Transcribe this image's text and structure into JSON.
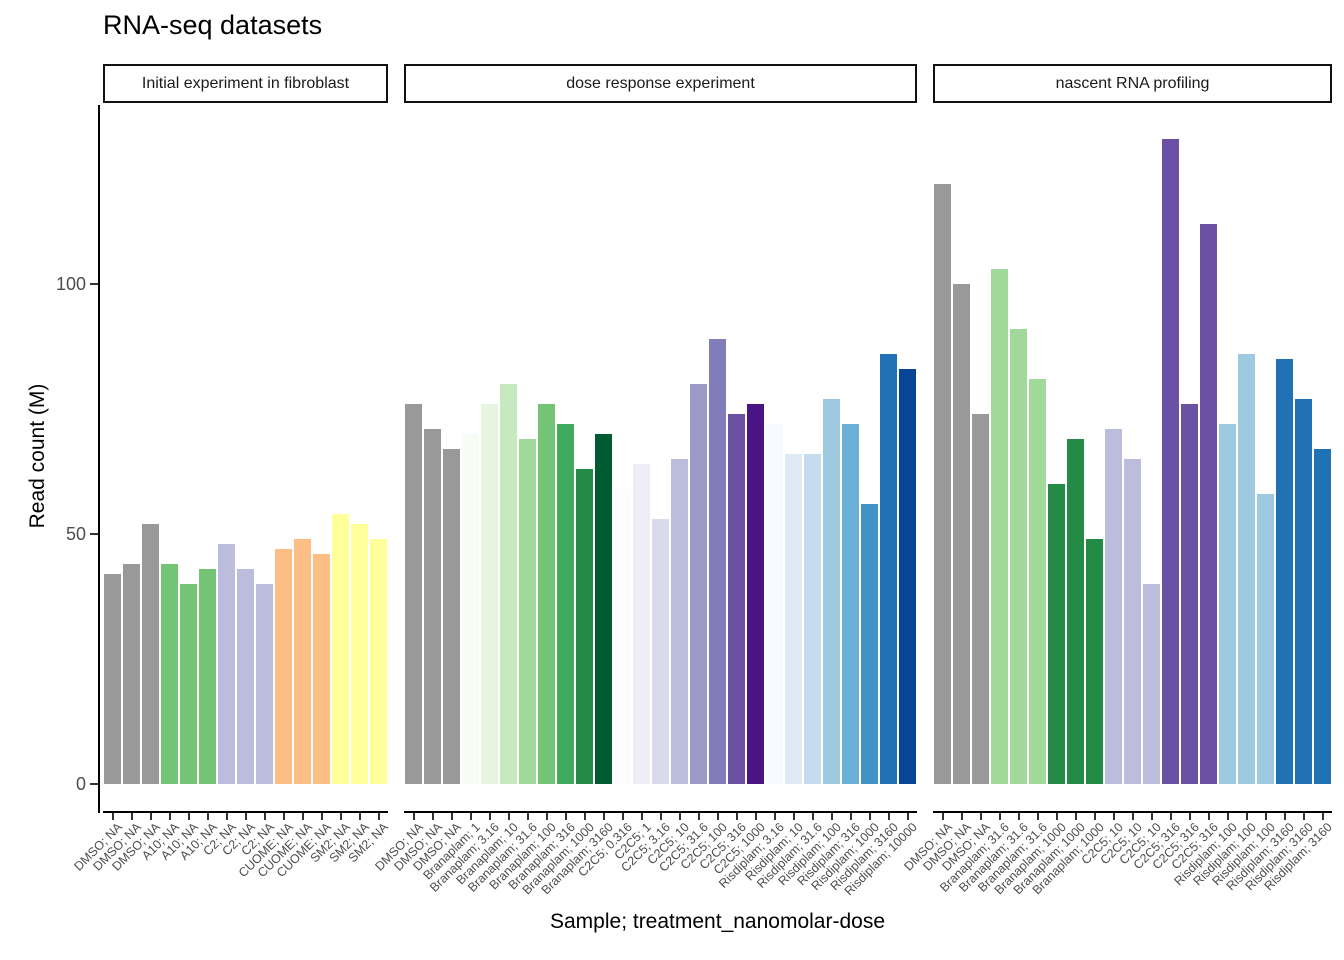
{
  "title": "RNA-seq datasets",
  "y_axis": {
    "label": "Read count (M)",
    "ticks": [
      0,
      50,
      100
    ]
  },
  "x_axis": {
    "label": "Sample; treatment_nanomolar-dose"
  },
  "colors": {
    "panel_background": "#ffffff",
    "axis_line": "#000000",
    "tick_mark": "#333333",
    "tick_label": "#4d4d4d",
    "strip_border": "#111111",
    "strip_text": "#1a1a1a"
  },
  "chart_data": {
    "type": "bar",
    "title": "RNA-seq datasets",
    "xlabel": "Sample; treatment_nanomolar-dose",
    "ylabel": "Read count (M)",
    "ylim": [
      0,
      136
    ],
    "yticks": [
      0,
      50,
      100
    ],
    "grid": false,
    "legend": "none",
    "facets": [
      {
        "label": "Initial experiment in fibroblast",
        "bars": [
          {
            "label": "DMSO; NA",
            "value": 42,
            "color": "#999999"
          },
          {
            "label": "DMSO; NA",
            "value": 44,
            "color": "#999999"
          },
          {
            "label": "DMSO; NA",
            "value": 52,
            "color": "#999999"
          },
          {
            "label": "A10; NA",
            "value": 44,
            "color": "#74c476"
          },
          {
            "label": "A10; NA",
            "value": 40,
            "color": "#74c476"
          },
          {
            "label": "A10; NA",
            "value": 43,
            "color": "#74c476"
          },
          {
            "label": "C2; NA",
            "value": 48,
            "color": "#bcbddc"
          },
          {
            "label": "C2; NA",
            "value": 43,
            "color": "#bcbddc"
          },
          {
            "label": "C2; NA",
            "value": 40,
            "color": "#bcbddc"
          },
          {
            "label": "CUOME; NA",
            "value": 47,
            "color": "#fdbe85"
          },
          {
            "label": "CUOME; NA",
            "value": 49,
            "color": "#fdbe85"
          },
          {
            "label": "CUOME; NA",
            "value": 46,
            "color": "#fdbe85"
          },
          {
            "label": "SM2; NA",
            "value": 54,
            "color": "#ffff99"
          },
          {
            "label": "SM2; NA",
            "value": 52,
            "color": "#ffff99"
          },
          {
            "label": "SM2; NA",
            "value": 49,
            "color": "#ffff99"
          }
        ]
      },
      {
        "label": "dose response experiment",
        "bars": [
          {
            "label": "DMSO; NA",
            "value": 76,
            "color": "#999999"
          },
          {
            "label": "DMSO; NA",
            "value": 71,
            "color": "#999999"
          },
          {
            "label": "DMSO; NA",
            "value": 67,
            "color": "#999999"
          },
          {
            "label": "Branaplam; 1",
            "value": 70,
            "color": "#f7fcf5"
          },
          {
            "label": "Branaplam; 3.16",
            "value": 76,
            "color": "#e5f5e0"
          },
          {
            "label": "Branaplam; 10",
            "value": 80,
            "color": "#c7e9c0"
          },
          {
            "label": "Branaplam; 31.6",
            "value": 69,
            "color": "#a1d99b"
          },
          {
            "label": "Branaplam; 100",
            "value": 76,
            "color": "#74c476"
          },
          {
            "label": "Branaplam; 316",
            "value": 72,
            "color": "#41ab5d"
          },
          {
            "label": "Branaplam; 1000",
            "value": 63,
            "color": "#238b45"
          },
          {
            "label": "Branaplam; 3160",
            "value": 70,
            "color": "#005a32"
          },
          {
            "label": "C2C5; 0.316",
            "value": 59,
            "color": "#fcfbfd"
          },
          {
            "label": "C2C5; 1",
            "value": 64,
            "color": "#efedf5"
          },
          {
            "label": "C2C5; 3.16",
            "value": 53,
            "color": "#dadaeb"
          },
          {
            "label": "C2C5; 10",
            "value": 65,
            "color": "#bcbddc"
          },
          {
            "label": "C2C5; 31.6",
            "value": 80,
            "color": "#9e9ac8"
          },
          {
            "label": "C2C5; 100",
            "value": 89,
            "color": "#807dba"
          },
          {
            "label": "C2C5; 316",
            "value": 74,
            "color": "#6a51a3"
          },
          {
            "label": "C2C5; 1000",
            "value": 76,
            "color": "#4a1486"
          },
          {
            "label": "Risdiplam; 3.16",
            "value": 72,
            "color": "#f7fbff"
          },
          {
            "label": "Risdiplam; 10",
            "value": 66,
            "color": "#deebf7"
          },
          {
            "label": "Risdiplam; 31.6",
            "value": 66,
            "color": "#c6dbef"
          },
          {
            "label": "Risdiplam; 100",
            "value": 77,
            "color": "#9ecae1"
          },
          {
            "label": "Risdiplam; 316",
            "value": 72,
            "color": "#6baed6"
          },
          {
            "label": "Risdiplam; 1000",
            "value": 56,
            "color": "#4292c6"
          },
          {
            "label": "Risdiplam; 3160",
            "value": 86,
            "color": "#2171b5"
          },
          {
            "label": "Risdiplam; 10000",
            "value": 83,
            "color": "#084594"
          }
        ]
      },
      {
        "label": "nascent RNA profiling",
        "bars": [
          {
            "label": "DMSO; NA",
            "value": 120,
            "color": "#999999"
          },
          {
            "label": "DMSO; NA",
            "value": 100,
            "color": "#999999"
          },
          {
            "label": "DMSO; NA",
            "value": 74,
            "color": "#999999"
          },
          {
            "label": "Branaplam; 31.6",
            "value": 103,
            "color": "#a1d99b"
          },
          {
            "label": "Branaplam; 31.6",
            "value": 91,
            "color": "#a1d99b"
          },
          {
            "label": "Branaplam; 31.6",
            "value": 81,
            "color": "#a1d99b"
          },
          {
            "label": "Branaplam; 1000",
            "value": 60,
            "color": "#238b45"
          },
          {
            "label": "Branaplam; 1000",
            "value": 69,
            "color": "#238b45"
          },
          {
            "label": "Branaplam; 1000",
            "value": 49,
            "color": "#238b45"
          },
          {
            "label": "C2C5; 10",
            "value": 71,
            "color": "#bcbddc"
          },
          {
            "label": "C2C5; 10",
            "value": 65,
            "color": "#bcbddc"
          },
          {
            "label": "C2C5; 10",
            "value": 40,
            "color": "#bcbddc"
          },
          {
            "label": "C2C5; 316",
            "value": 129,
            "color": "#6a51a3"
          },
          {
            "label": "C2C5; 316",
            "value": 76,
            "color": "#6a51a3"
          },
          {
            "label": "C2C5; 316",
            "value": 112,
            "color": "#6a51a3"
          },
          {
            "label": "Risdiplam; 100",
            "value": 72,
            "color": "#9ecae1"
          },
          {
            "label": "Risdiplam; 100",
            "value": 86,
            "color": "#9ecae1"
          },
          {
            "label": "Risdiplam; 100",
            "value": 58,
            "color": "#9ecae1"
          },
          {
            "label": "Risdiplam; 3160",
            "value": 85,
            "color": "#2171b5"
          },
          {
            "label": "Risdiplam; 3160",
            "value": 77,
            "color": "#2171b5"
          },
          {
            "label": "Risdiplam; 3160",
            "value": 67,
            "color": "#2171b5"
          }
        ]
      }
    ]
  }
}
